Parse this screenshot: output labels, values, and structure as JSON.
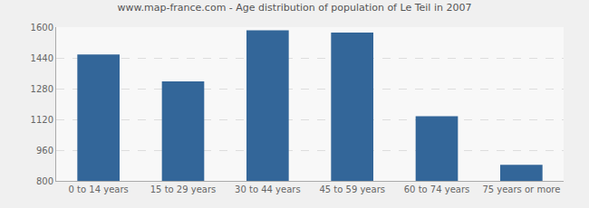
{
  "chart_data": {
    "type": "bar",
    "title": "www.map-france.com - Age distribution of population of Le Teil in 2007",
    "categories": [
      "0 to 14 years",
      "15 to 29 years",
      "30 to 44 years",
      "45 to 59 years",
      "60 to 74 years",
      "75 years or more"
    ],
    "values": [
      1458,
      1318,
      1583,
      1572,
      1136,
      884
    ],
    "color": "#336699",
    "ylim": [
      800,
      1600
    ],
    "yticks": [
      800,
      960,
      1120,
      1280,
      1440,
      1600
    ],
    "grid": true
  }
}
